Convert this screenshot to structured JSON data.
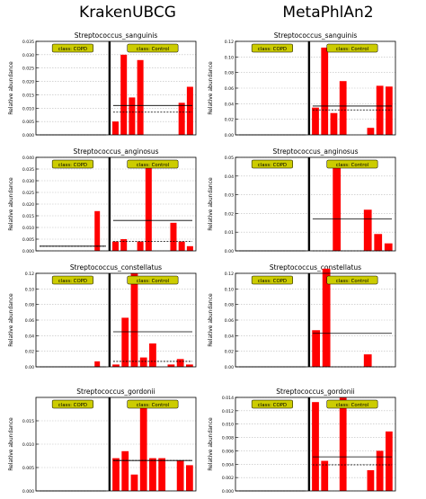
{
  "columns": [
    "KrakenUBCG",
    "MetaPhlAn2"
  ],
  "class_labels": {
    "copd": "class: COPD",
    "control": "class: Control"
  },
  "ylabel": "Relative abundance",
  "colors": {
    "bar": "#ff0000",
    "label_box": "#cccc00",
    "mean_line": "#000000"
  },
  "chart_data": [
    {
      "type": "bar",
      "title": "Streptococcus_sanguinis",
      "column": "KrakenUBCG",
      "ylim": [
        0,
        0.035
      ],
      "yticks": [
        "0.000",
        "0.005",
        "0.010",
        "0.015",
        "0.020",
        "0.025",
        "0.030",
        "0.035"
      ],
      "copd": {
        "values": [
          0,
          0,
          0,
          0,
          0,
          0,
          0,
          0,
          0,
          0
        ],
        "mean": 0.0,
        "median": 0.0
      },
      "control": {
        "values": [
          0.005,
          0.03,
          0.014,
          0.028,
          0.0,
          0.0,
          0.0,
          0.0,
          0.012,
          0.018
        ],
        "mean": 0.011,
        "median": 0.0085
      }
    },
    {
      "type": "bar",
      "title": "Streptococcus_sanguinis",
      "column": "MetaPhlAn2",
      "ylim": [
        0,
        0.12
      ],
      "yticks": [
        "0.00",
        "0.02",
        "0.04",
        "0.06",
        "0.08",
        "0.10",
        "0.12"
      ],
      "copd": {
        "values": [
          0,
          0,
          0,
          0,
          0,
          0,
          0,
          0,
          0,
          0
        ],
        "mean": 0.0,
        "median": 0.0
      },
      "control": {
        "values": [
          0.035,
          0.112,
          0.028,
          0.069,
          0.0,
          0.0,
          0.009,
          0.063,
          0.062
        ],
        "mean": 0.037,
        "median": 0.032
      }
    },
    {
      "type": "bar",
      "title": "Streptococcus_anginosus",
      "column": "KrakenUBCG",
      "ylim": [
        0,
        0.04
      ],
      "yticks": [
        "0.000",
        "0.005",
        "0.010",
        "0.015",
        "0.020",
        "0.025",
        "0.030",
        "0.035",
        "0.040"
      ],
      "copd": {
        "values": [
          0,
          0,
          0,
          0,
          0,
          0,
          0,
          0,
          0.017,
          0
        ],
        "mean": 0.002,
        "median": 0.002
      },
      "control": {
        "values": [
          0.004,
          0.005,
          0.0,
          0.004,
          0.038,
          0.0,
          0.0,
          0.012,
          0.004,
          0.002
        ],
        "mean": 0.013,
        "median": 0.004
      }
    },
    {
      "type": "bar",
      "title": "Streptococcus_anginosus",
      "column": "MetaPhlAn2",
      "ylim": [
        0,
        0.05
      ],
      "yticks": [
        "0.00",
        "0.01",
        "0.02",
        "0.03",
        "0.04",
        "0.05"
      ],
      "copd": {
        "values": [
          0,
          0,
          0,
          0,
          0,
          0,
          0,
          0,
          0,
          0
        ],
        "mean": 0.0,
        "median": 0.0
      },
      "control": {
        "values": [
          0.0,
          0.0,
          0.047,
          0.0,
          0.0,
          0.022,
          0.009,
          0.004
        ],
        "mean": 0.017,
        "median": 0.0
      }
    },
    {
      "type": "bar",
      "title": "Streptococcus_constellatus",
      "column": "KrakenUBCG",
      "ylim": [
        0,
        0.12
      ],
      "yticks": [
        "0.00",
        "0.02",
        "0.04",
        "0.06",
        "0.08",
        "0.10",
        "0.12"
      ],
      "copd": {
        "values": [
          0,
          0,
          0,
          0,
          0,
          0,
          0,
          0,
          0.007,
          0
        ],
        "mean": 0.0,
        "median": 0.0
      },
      "control": {
        "values": [
          0.003,
          0.063,
          0.12,
          0.012,
          0.03,
          0.0,
          0.003,
          0.01,
          0.003
        ],
        "mean": 0.045,
        "median": 0.007
      }
    },
    {
      "type": "bar",
      "title": "Streptococcus_constellatus",
      "column": "MetaPhlAn2",
      "ylim": [
        0,
        0.12
      ],
      "yticks": [
        "0.00",
        "0.02",
        "0.04",
        "0.06",
        "0.08",
        "0.10",
        "0.12"
      ],
      "copd": {
        "values": [
          0,
          0,
          0,
          0,
          0,
          0,
          0,
          0,
          0,
          0
        ],
        "mean": 0.0,
        "median": 0.0
      },
      "control": {
        "values": [
          0.047,
          0.126,
          0.0,
          0.0,
          0.0,
          0.016,
          0.0,
          0.0
        ],
        "mean": 0.043,
        "median": 0.0
      }
    },
    {
      "type": "bar",
      "title": "Streptococcus_gordonii",
      "column": "KrakenUBCG",
      "ylim": [
        0,
        0.02
      ],
      "yticks": [
        "0.000",
        "0.005",
        "0.010",
        "0.015"
      ],
      "copd": {
        "values": [
          0,
          0,
          0,
          0,
          0,
          0,
          0,
          0,
          0,
          0
        ],
        "mean": 0.0,
        "median": 0.0
      },
      "control": {
        "values": [
          0.007,
          0.0085,
          0.0035,
          0.019,
          0.007,
          0.007,
          0.0,
          0.0065,
          0.0055
        ],
        "mean": 0.0065,
        "median": 0.0065
      }
    },
    {
      "type": "bar",
      "title": "Streptococcus_gordonii",
      "column": "MetaPhlAn2",
      "ylim": [
        0,
        0.014
      ],
      "yticks": [
        "0.000",
        "0.002",
        "0.004",
        "0.006",
        "0.008",
        "0.010",
        "0.012",
        "0.014"
      ],
      "copd": {
        "values": [
          0,
          0,
          0,
          0,
          0,
          0,
          0,
          0,
          0,
          0
        ],
        "mean": 0.0,
        "median": 0.0
      },
      "control": {
        "values": [
          0.0133,
          0.0045,
          0.0,
          0.014,
          0.0,
          0.0,
          0.0031,
          0.006,
          0.0089
        ],
        "mean": 0.0051,
        "median": 0.0039
      }
    }
  ]
}
